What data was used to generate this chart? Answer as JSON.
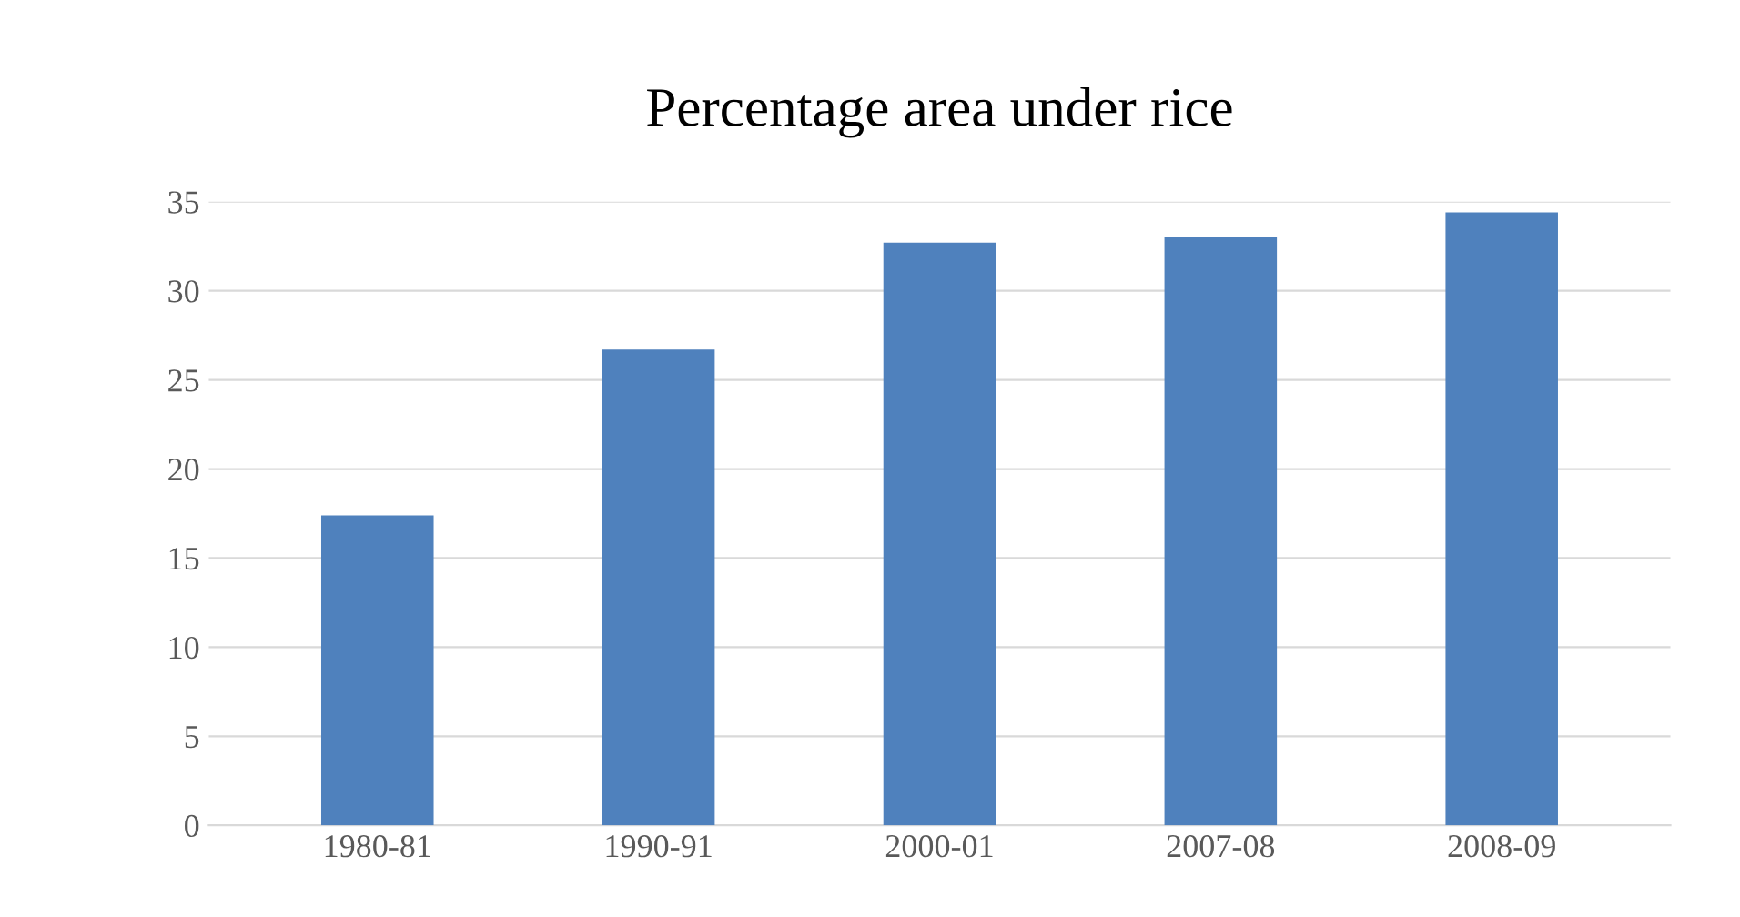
{
  "chart_data": {
    "type": "bar",
    "title": "Percentage area under rice",
    "categories": [
      "1980-81",
      "1990-91",
      "2000-01",
      "2007-08",
      "2008-09"
    ],
    "values": [
      17.4,
      26.7,
      32.7,
      33.0,
      34.4
    ],
    "color": "#4f81bd",
    "ylim": [
      0,
      35
    ],
    "yticks": [
      0,
      5,
      10,
      15,
      20,
      25,
      30,
      35
    ],
    "grid": "y"
  }
}
